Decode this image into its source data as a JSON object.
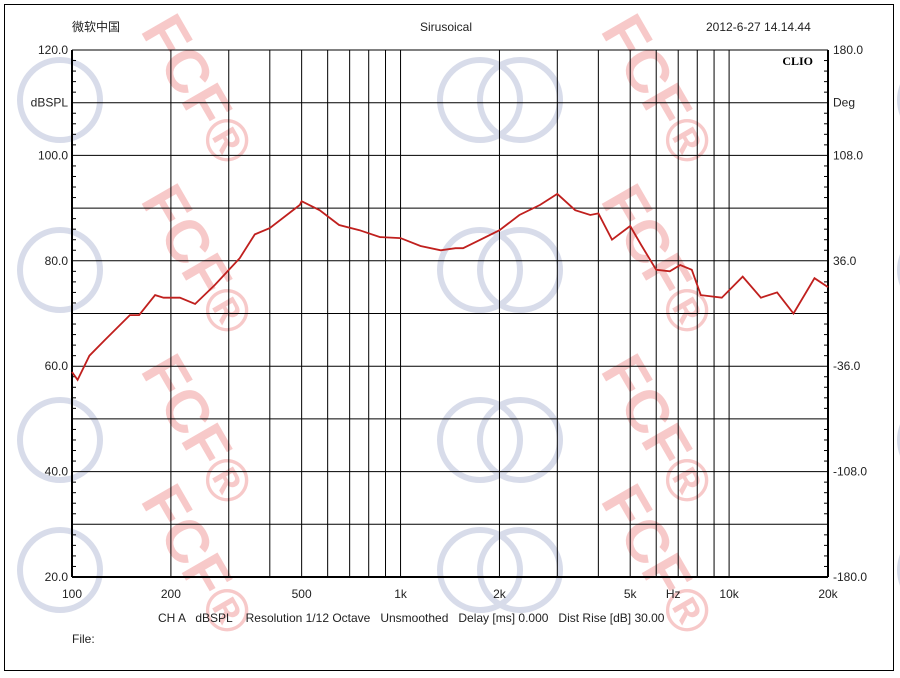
{
  "header": {
    "left": "微软中国",
    "center": "Sirusoical",
    "right": "2012-6-27 14.14.44"
  },
  "brand": "CLIO",
  "watermark": "FCF®",
  "footer": {
    "info": "CH A   dBSPL    Resolution 1/12 Octave   Unsmoothed   Delay [ms] 0.000   Dist Rise [dB] 30.00",
    "file_label": "File:"
  },
  "colors": {
    "curve": "#c0201e",
    "grid": "#000000",
    "watermark": "#f7c9c9",
    "watermark_logo": "#d8dcea"
  },
  "chart_data": {
    "type": "line",
    "title": "Sirusoical",
    "xscale": "log",
    "xlim": [
      100,
      20000
    ],
    "ylim": [
      20,
      120
    ],
    "y2lim": [
      -180,
      180
    ],
    "xlabel": "Hz",
    "ylabel": "dBSPL",
    "y2label": "Deg",
    "grid": true,
    "x_ticks": [
      {
        "v": 100,
        "l": "100"
      },
      {
        "v": 200,
        "l": "200"
      },
      {
        "v": 500,
        "l": "500"
      },
      {
        "v": 1000,
        "l": "1k"
      },
      {
        "v": 2000,
        "l": "2k"
      },
      {
        "v": 5000,
        "l": "5k"
      },
      {
        "v": 10000,
        "l": "10k"
      },
      {
        "v": 20000,
        "l": "20k"
      }
    ],
    "x_unit_label": {
      "v": 7000,
      "l": "Hz"
    },
    "y_ticks": [
      {
        "v": 120,
        "l": "120.0"
      },
      {
        "v": 100,
        "l": "100.0"
      },
      {
        "v": 80,
        "l": "80.0"
      },
      {
        "v": 60,
        "l": "60.0"
      },
      {
        "v": 40,
        "l": "40.0"
      },
      {
        "v": 20,
        "l": "20.0"
      }
    ],
    "y2_ticks": [
      {
        "v": 180,
        "l": "180.0"
      },
      {
        "v": 108,
        "l": "108.0"
      },
      {
        "v": 36,
        "l": "36.0"
      },
      {
        "v": -36,
        "l": "-36.0"
      },
      {
        "v": -108,
        "l": "-108.0"
      },
      {
        "v": -180,
        "l": "-180.0"
      }
    ],
    "series": [
      {
        "x": [
          100,
          104,
          113,
          126,
          150,
          160,
          179,
          190,
          213,
          237,
          272,
          324,
          360,
          400,
          494,
          500,
          567,
          650,
          750,
          866,
          1000,
          1150,
          1325,
          1470,
          1550,
          1750,
          2000,
          2300,
          2660,
          3000,
          3400,
          3780,
          4000,
          4400,
          5000,
          5400,
          6000,
          6600,
          7100,
          7700,
          8200,
          9500,
          11000,
          12500,
          14000,
          15700,
          18200,
          20000
        ],
        "y": [
          58.9,
          57.4,
          62,
          65,
          69.7,
          69.7,
          73.5,
          73,
          73,
          71.8,
          75.4,
          80.5,
          85,
          86.2,
          90.6,
          91.3,
          89.6,
          86.8,
          85.8,
          84.5,
          84.3,
          82.8,
          82,
          82.4,
          82.4,
          84,
          85.8,
          88.7,
          90.6,
          92.7,
          89.6,
          88.7,
          89,
          84,
          86.6,
          83,
          78.3,
          78,
          79.2,
          78.3,
          73.5,
          73,
          77,
          73,
          74,
          70,
          76.7,
          75
        ]
      }
    ]
  }
}
